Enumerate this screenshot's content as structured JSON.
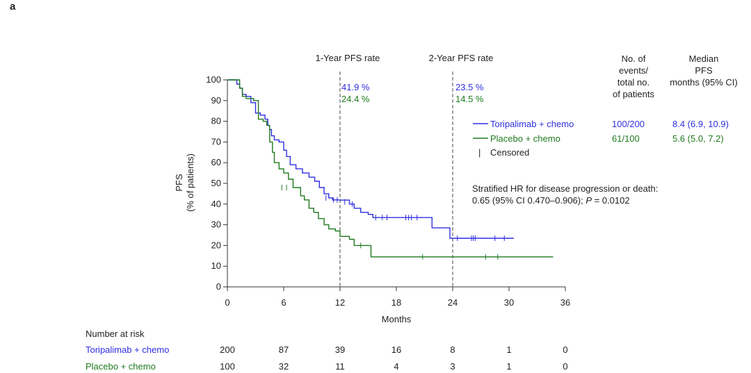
{
  "panel_label": "a",
  "legend": {
    "col_events_header": [
      "No. of",
      "events/",
      "total no.",
      "of patients"
    ],
    "col_median_header": [
      "Median",
      "PFS",
      "months (95% CI)"
    ],
    "entries": [
      {
        "label": "Toripalimab + chemo",
        "events": "100/200",
        "median": "8.4 (6.9, 10.9)",
        "color": "#2f2fe0"
      },
      {
        "label": "Placebo + chemo",
        "events": "61/100",
        "median": "5.6 (5.0, 7.2)",
        "color": "#1e7a1e"
      }
    ],
    "censored_label": "Censored",
    "censored_symbol": "|"
  },
  "hr_text": {
    "line1": "Stratified HR for disease progression or death:",
    "line2_prefix": "0.65 (95% CI 0.470–0.906); ",
    "line2_p": "P",
    "line2_suffix": " = 0.0102"
  },
  "risk_table": {
    "title": "Number at risk",
    "rows": [
      {
        "label": "Toripalimab + chemo",
        "values": [
          "200",
          "87",
          "39",
          "16",
          "8",
          "1",
          "0"
        ],
        "color": "#2f2fe0"
      },
      {
        "label": "Placebo + chemo",
        "values": [
          "100",
          "32",
          "11",
          "4",
          "3",
          "1",
          "0"
        ],
        "color": "#1e7a1e"
      }
    ]
  },
  "chart_data": {
    "type": "line",
    "xlabel": "Months",
    "ylabel": [
      "PFS",
      "(% of patients)"
    ],
    "xlim": [
      0,
      36
    ],
    "ylim": [
      0,
      100
    ],
    "xticks": [
      0,
      6,
      12,
      18,
      24,
      30,
      36
    ],
    "yticks": [
      0,
      10,
      20,
      30,
      40,
      50,
      60,
      70,
      80,
      90,
      100
    ],
    "grid": false,
    "legend_position": "right",
    "reference_lines": [
      {
        "x": 12,
        "label": "1-Year PFS rate",
        "values": [
          "41.9 %",
          "24.4 %"
        ]
      },
      {
        "x": 24,
        "label": "2-Year PFS rate",
        "values": [
          "23.5 %",
          "14.5 %"
        ]
      }
    ],
    "series": [
      {
        "name": "Toripalimab + chemo",
        "color": "#2f2fe0",
        "steps": [
          [
            0,
            100
          ],
          [
            1.0,
            98
          ],
          [
            1.3,
            96
          ],
          [
            1.6,
            93
          ],
          [
            2.0,
            92
          ],
          [
            2.5,
            89
          ],
          [
            3.0,
            84
          ],
          [
            3.5,
            83
          ],
          [
            4.0,
            81
          ],
          [
            4.3,
            78
          ],
          [
            4.5,
            76
          ],
          [
            4.7,
            73
          ],
          [
            5.0,
            71
          ],
          [
            5.5,
            70
          ],
          [
            6.0,
            66
          ],
          [
            6.3,
            63
          ],
          [
            6.7,
            59
          ],
          [
            7.3,
            57
          ],
          [
            8.0,
            55
          ],
          [
            8.7,
            53
          ],
          [
            9.3,
            51
          ],
          [
            9.8,
            48
          ],
          [
            10.3,
            45
          ],
          [
            10.8,
            43
          ],
          [
            11.2,
            42
          ],
          [
            12.0,
            41.9
          ],
          [
            13.0,
            40
          ],
          [
            13.5,
            38
          ],
          [
            14.2,
            36
          ],
          [
            15.0,
            35
          ],
          [
            15.5,
            33.5
          ],
          [
            21.8,
            28.5
          ],
          [
            23.7,
            23.5
          ],
          [
            30.5,
            23.5
          ]
        ],
        "censored": [
          [
            10.5,
            43
          ],
          [
            11.3,
            42
          ],
          [
            11.7,
            42
          ],
          [
            12.5,
            41
          ],
          [
            13.3,
            40
          ],
          [
            15.8,
            33.5
          ],
          [
            16.5,
            33.5
          ],
          [
            17.0,
            33.5
          ],
          [
            19.0,
            33.5
          ],
          [
            19.3,
            33.5
          ],
          [
            19.6,
            33.5
          ],
          [
            20.2,
            33.5
          ],
          [
            24.5,
            23.5
          ],
          [
            26.0,
            23.5
          ],
          [
            26.2,
            23.5
          ],
          [
            26.4,
            23.5
          ],
          [
            28.5,
            23.5
          ],
          [
            29.5,
            23.5
          ]
        ]
      },
      {
        "name": "Placebo + chemo",
        "color": "#1e7a1e",
        "steps": [
          [
            0,
            100
          ],
          [
            1.3,
            96
          ],
          [
            1.6,
            92
          ],
          [
            2.0,
            91
          ],
          [
            2.8,
            90
          ],
          [
            3.3,
            81
          ],
          [
            3.8,
            80
          ],
          [
            4.2,
            78
          ],
          [
            4.5,
            70
          ],
          [
            4.8,
            65
          ],
          [
            5.0,
            60
          ],
          [
            5.5,
            57
          ],
          [
            6.0,
            55
          ],
          [
            6.5,
            52
          ],
          [
            7.0,
            48
          ],
          [
            7.8,
            44
          ],
          [
            8.2,
            42
          ],
          [
            8.7,
            38
          ],
          [
            9.2,
            36
          ],
          [
            9.7,
            33
          ],
          [
            10.3,
            30
          ],
          [
            10.8,
            28
          ],
          [
            11.5,
            27
          ],
          [
            12.0,
            24.4
          ],
          [
            13.0,
            23
          ],
          [
            13.5,
            20
          ],
          [
            15.3,
            14.5
          ],
          [
            34.7,
            14.5
          ]
        ],
        "censored": [
          [
            5.8,
            48
          ],
          [
            6.3,
            48
          ],
          [
            14.2,
            20
          ],
          [
            20.8,
            14.5
          ],
          [
            27.5,
            14.5
          ],
          [
            28.8,
            14.5
          ]
        ]
      }
    ]
  }
}
